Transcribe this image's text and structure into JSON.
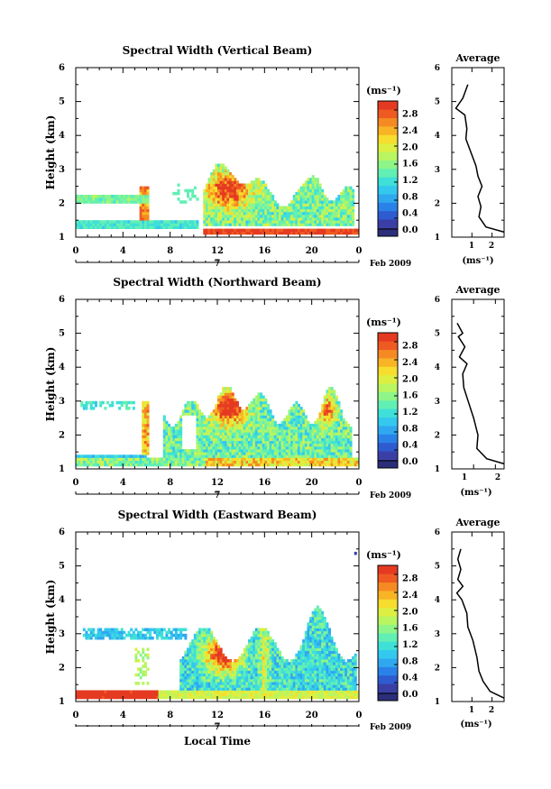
{
  "figure": {
    "x_axis_label": "Local Time",
    "date_label": "Feb 2009",
    "day_label": "7",
    "colorbar_unit": "(ms⁻¹)",
    "average_title": "Average",
    "average_unit": "(ms⁻¹)",
    "colors": {
      "colormap": [
        "#2b2f7a",
        "#3a3fa6",
        "#2f5bd0",
        "#2a82e8",
        "#2fa8f0",
        "#34c8ee",
        "#3fe0d8",
        "#62efb4",
        "#8ef588",
        "#b9f560",
        "#dcef42",
        "#f6dd2e",
        "#f8b424",
        "#f58a22",
        "#ef5a22",
        "#e53a22"
      ]
    }
  },
  "chart_data": [
    {
      "type": "heatmap",
      "title": "Spectral Width (Vertical Beam)",
      "xlabel": "",
      "ylabel": "Height (km)",
      "xlim": [
        0,
        24
      ],
      "ylim": [
        1,
        6
      ],
      "xticks": [
        "0",
        "4",
        "8",
        "12",
        "16",
        "20",
        "0"
      ],
      "yticks": [
        "1",
        "2",
        "3",
        "4",
        "5",
        "6"
      ],
      "colorbar": {
        "min": 0.0,
        "max": 3.0,
        "ticks": [
          "0.0",
          "0.4",
          "0.8",
          "1.2",
          "1.6",
          "2.0",
          "2.4",
          "2.8"
        ]
      },
      "average_profile": {
        "xticks": [
          "1",
          "2"
        ],
        "xlim": [
          0,
          2.6
        ],
        "ylim": [
          1,
          6
        ],
        "points": [
          [
            2.6,
            1.15
          ],
          [
            1.7,
            1.3
          ],
          [
            1.35,
            1.6
          ],
          [
            1.45,
            1.9
          ],
          [
            1.3,
            2.2
          ],
          [
            1.5,
            2.5
          ],
          [
            1.3,
            2.8
          ],
          [
            1.2,
            3.1
          ],
          [
            0.95,
            3.5
          ],
          [
            0.7,
            3.9
          ],
          [
            0.75,
            4.2
          ],
          [
            0.65,
            4.6
          ],
          [
            0.2,
            4.8
          ],
          [
            0.55,
            5.1
          ],
          [
            0.8,
            5.5
          ]
        ]
      }
    },
    {
      "type": "heatmap",
      "title": "Spectral Width (Northward Beam)",
      "xlabel": "",
      "ylabel": "Height (km)",
      "xlim": [
        0,
        24
      ],
      "ylim": [
        1,
        6
      ],
      "xticks": [
        "0",
        "4",
        "8",
        "12",
        "16",
        "20",
        "0"
      ],
      "yticks": [
        "1",
        "2",
        "3",
        "4",
        "5",
        "6"
      ],
      "colorbar": {
        "min": 0.0,
        "max": 3.0,
        "ticks": [
          "0.0",
          "0.4",
          "0.8",
          "1.2",
          "1.6",
          "2.0",
          "2.4",
          "2.8"
        ]
      },
      "average_profile": {
        "xticks": [
          "1",
          "2"
        ],
        "xlim": [
          0,
          2.4
        ],
        "ylim": [
          1,
          6
        ],
        "points": [
          [
            2.4,
            1.15
          ],
          [
            1.6,
            1.3
          ],
          [
            1.15,
            1.6
          ],
          [
            1.2,
            2.0
          ],
          [
            1.0,
            2.5
          ],
          [
            0.75,
            3.0
          ],
          [
            0.55,
            3.4
          ],
          [
            0.5,
            3.8
          ],
          [
            0.7,
            4.1
          ],
          [
            0.35,
            4.3
          ],
          [
            0.6,
            4.6
          ],
          [
            0.3,
            4.9
          ],
          [
            0.5,
            5.0
          ],
          [
            0.25,
            5.3
          ]
        ]
      }
    },
    {
      "type": "heatmap",
      "title": "Spectral Width (Eastward Beam)",
      "xlabel": "Local Time",
      "ylabel": "Height (km)",
      "xlim": [
        0,
        24
      ],
      "ylim": [
        1,
        6
      ],
      "xticks": [
        "0",
        "4",
        "8",
        "12",
        "16",
        "20",
        "0"
      ],
      "yticks": [
        "1",
        "2",
        "3",
        "4",
        "5",
        "6"
      ],
      "colorbar": {
        "min": 0.0,
        "max": 3.0,
        "ticks": [
          "0.0",
          "0.4",
          "0.8",
          "1.2",
          "1.6",
          "2.0",
          "2.4",
          "2.8"
        ]
      },
      "average_profile": {
        "xticks": [
          "1",
          "2"
        ],
        "xlim": [
          0,
          2.6
        ],
        "ylim": [
          1,
          6
        ],
        "points": [
          [
            2.6,
            1.1
          ],
          [
            1.9,
            1.3
          ],
          [
            1.55,
            1.6
          ],
          [
            1.35,
            1.9
          ],
          [
            1.25,
            2.3
          ],
          [
            1.05,
            2.8
          ],
          [
            0.8,
            3.2
          ],
          [
            0.75,
            3.6
          ],
          [
            0.5,
            4.0
          ],
          [
            0.25,
            4.2
          ],
          [
            0.55,
            4.4
          ],
          [
            0.3,
            4.6
          ],
          [
            0.45,
            4.9
          ],
          [
            0.3,
            5.2
          ],
          [
            0.45,
            5.5
          ]
        ]
      }
    }
  ]
}
